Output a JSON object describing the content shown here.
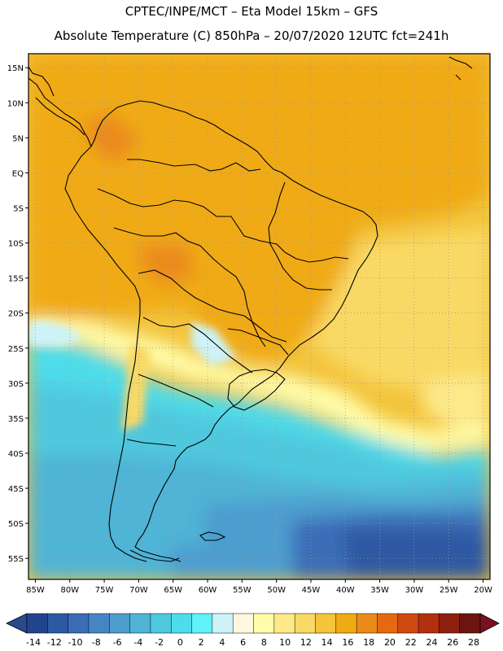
{
  "header": {
    "line1": "CPTEC/INPE/MCT –  Eta Model 15km – GFS",
    "line2": "Absolute Temperature (C) 850hPa – 20/07/2020 12UTC fct=241h"
  },
  "map": {
    "region": "South America",
    "lat_labels": [
      "15N",
      "10N",
      "5N",
      "EQ",
      "5S",
      "10S",
      "15S",
      "20S",
      "25S",
      "30S",
      "35S",
      "40S",
      "45S",
      "50S",
      "55S"
    ],
    "lat_values": [
      15,
      10,
      5,
      0,
      -5,
      -10,
      -15,
      -20,
      -25,
      -30,
      -35,
      -40,
      -45,
      -50,
      -55
    ],
    "lon_labels": [
      "85W",
      "80W",
      "75W",
      "70W",
      "65W",
      "60W",
      "55W",
      "50W",
      "45W",
      "40W",
      "35W",
      "30W",
      "25W",
      "20W"
    ],
    "lon_values": [
      -85,
      -80,
      -75,
      -70,
      -65,
      -60,
      -55,
      -50,
      -45,
      -40,
      -35,
      -30,
      -25,
      -20
    ],
    "lon_range": [
      -86,
      -19
    ],
    "lat_range": [
      -58,
      17
    ]
  },
  "colorbar": {
    "labels": [
      "-14",
      "-12",
      "-10",
      "-8",
      "-6",
      "-4",
      "-2",
      "0",
      "2",
      "4",
      "6",
      "8",
      "10",
      "12",
      "14",
      "16",
      "18",
      "20",
      "22",
      "24",
      "26",
      "28"
    ],
    "colors": [
      "#22448f",
      "#2d58a2",
      "#3a6db6",
      "#4585c4",
      "#4d9dcf",
      "#4fb4d6",
      "#50c8de",
      "#4fdcea",
      "#60f2f8",
      "#cdf3f8",
      "#fff8e0",
      "#fffcaa",
      "#fde98a",
      "#f9d965",
      "#f3c43c",
      "#f0aa12",
      "#ea8a1b",
      "#e46a12",
      "#cf4a10",
      "#b03010",
      "#8e2010",
      "#6b1410"
    ],
    "under_color": "#2a4a8c",
    "over_color": "#7a1020",
    "units": "C"
  }
}
